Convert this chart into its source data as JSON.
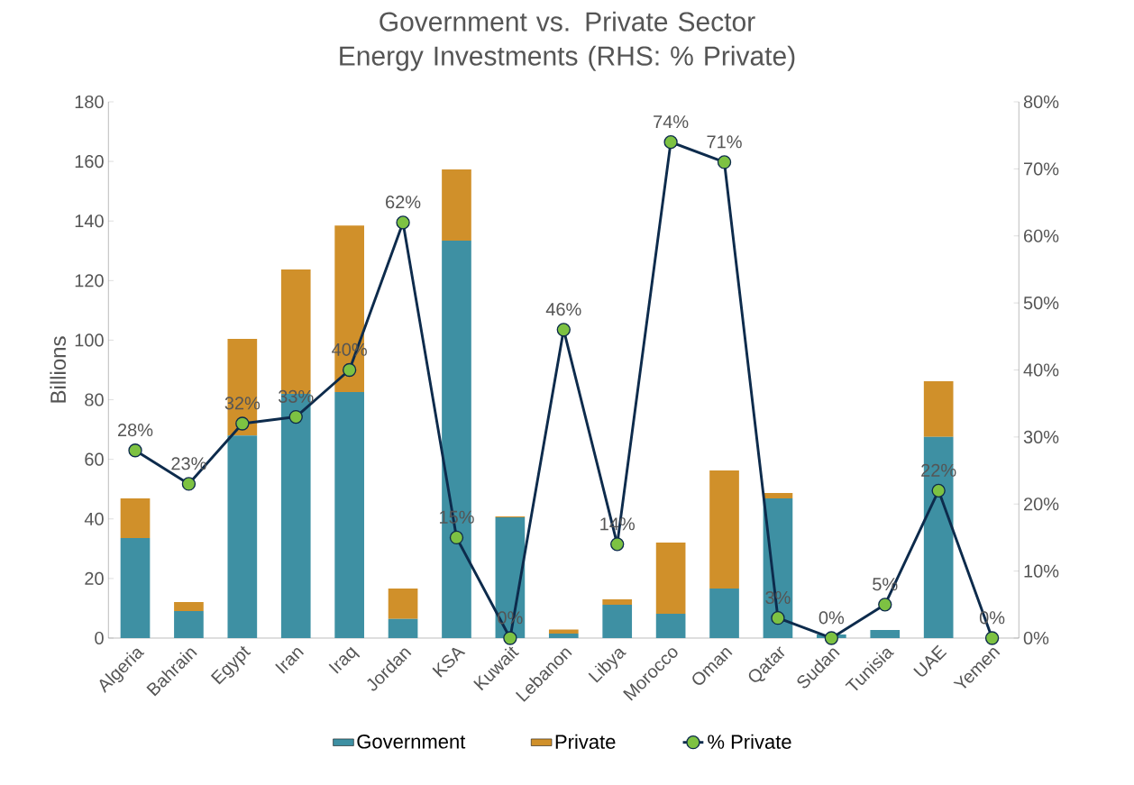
{
  "chart_data": {
    "type": "bar",
    "title": "Government vs. Private Sector Energy Investments (RHS: % Private)",
    "ylabel": "Billions",
    "categories": [
      "Algeria",
      "Bahrain",
      "Egypt",
      "Iran",
      "Iraq",
      "Jordan",
      "KSA",
      "Kuwait",
      "Lebanon",
      "Libya",
      "Morocco",
      "Oman",
      "Qatar",
      "Sudan",
      "Tunisia",
      "UAE",
      "Yemen"
    ],
    "stacked": true,
    "legend": "bottom",
    "ylim": [
      0,
      180
    ],
    "yticks": [
      0,
      20,
      40,
      60,
      80,
      100,
      120,
      140,
      160,
      180
    ],
    "y2lim": [
      0,
      80
    ],
    "y2ticks": [
      {
        "value": 0,
        "label": "0%"
      },
      {
        "value": 10,
        "label": "10%"
      },
      {
        "value": 20,
        "label": "20%"
      },
      {
        "value": 30,
        "label": "30%"
      },
      {
        "value": 40,
        "label": "40%"
      },
      {
        "value": 50,
        "label": "50%"
      },
      {
        "value": 60,
        "label": "60%"
      },
      {
        "value": 70,
        "label": "70%"
      },
      {
        "value": 80,
        "label": "80%"
      }
    ],
    "series": [
      {
        "name": "Government",
        "color": "#3e90a3",
        "values": [
          33.6,
          9.1,
          68,
          82,
          82.6,
          6.4,
          133.4,
          40.5,
          1.5,
          11.2,
          8.2,
          16.6,
          46.9,
          1.2,
          2.7,
          67.5,
          0
        ]
      },
      {
        "name": "Private",
        "color": "#d0902a",
        "values": [
          13.3,
          3.0,
          32.4,
          41.7,
          55.9,
          10.2,
          23.9,
          0.3,
          1.4,
          1.8,
          23.9,
          39.7,
          1.8,
          0,
          0,
          18.7,
          0
        ]
      },
      {
        "name": "% Private",
        "type": "line",
        "axis": "y2",
        "color": "#0d2b4c",
        "marker": "circle",
        "values": [
          28,
          23,
          32,
          33,
          40,
          62,
          15,
          0,
          46,
          14,
          74,
          71,
          3,
          0,
          5,
          22,
          0
        ],
        "value_labels": [
          "28%",
          "23%",
          "32%",
          "33%",
          "40%",
          "62%",
          "15%",
          "0%",
          "46%",
          "14%",
          "74%",
          "71%",
          "3%",
          "0%",
          "5%",
          "22%",
          "0%"
        ]
      }
    ]
  }
}
